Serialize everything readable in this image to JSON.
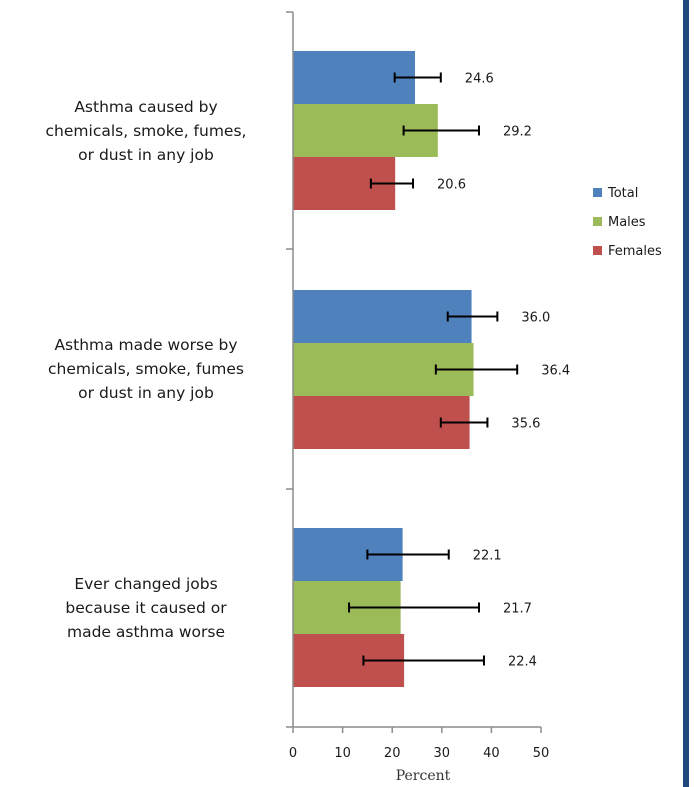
{
  "colors": {
    "total": "#4f81bd",
    "males": "#9bbb59",
    "females": "#c0504d",
    "right_rule": "#1f497d"
  },
  "chart_data": {
    "type": "bar",
    "orientation": "horizontal",
    "categories": [
      [
        "Asthma caused by",
        "chemicals, smoke, fumes,",
        "or dust in any job"
      ],
      [
        "Asthma made worse by",
        "chemicals, smoke, fumes",
        "or dust in any job"
      ],
      [
        "Ever changed jobs",
        "because it caused or",
        "made asthma worse"
      ]
    ],
    "series": [
      {
        "name": "Total",
        "color": "#4f81bd",
        "values": [
          24.6,
          36.0,
          22.1
        ],
        "value_labels": [
          "24.6",
          "36.0",
          "22.1"
        ],
        "error_low": [
          20.5,
          31.2,
          15.0
        ],
        "error_high": [
          29.8,
          41.2,
          31.4
        ]
      },
      {
        "name": "Males",
        "color": "#9bbb59",
        "values": [
          29.2,
          36.4,
          21.7
        ],
        "value_labels": [
          "29.2",
          "36.4",
          "21.7"
        ],
        "error_low": [
          22.3,
          28.8,
          11.3
        ],
        "error_high": [
          37.5,
          45.2,
          37.5
        ]
      },
      {
        "name": "Females",
        "color": "#c0504d",
        "values": [
          20.6,
          35.6,
          22.4
        ],
        "value_labels": [
          "20.6",
          "35.6",
          "22.4"
        ],
        "error_low": [
          15.7,
          29.8,
          14.2
        ],
        "error_high": [
          24.2,
          39.2,
          38.5
        ]
      }
    ],
    "xlim": [
      0,
      50
    ],
    "xticks": [
      "0",
      "10",
      "20",
      "30",
      "40",
      "50"
    ],
    "xlabel": "Percent",
    "ylabel": "",
    "title": "",
    "legend_position": "right",
    "grid": false
  }
}
